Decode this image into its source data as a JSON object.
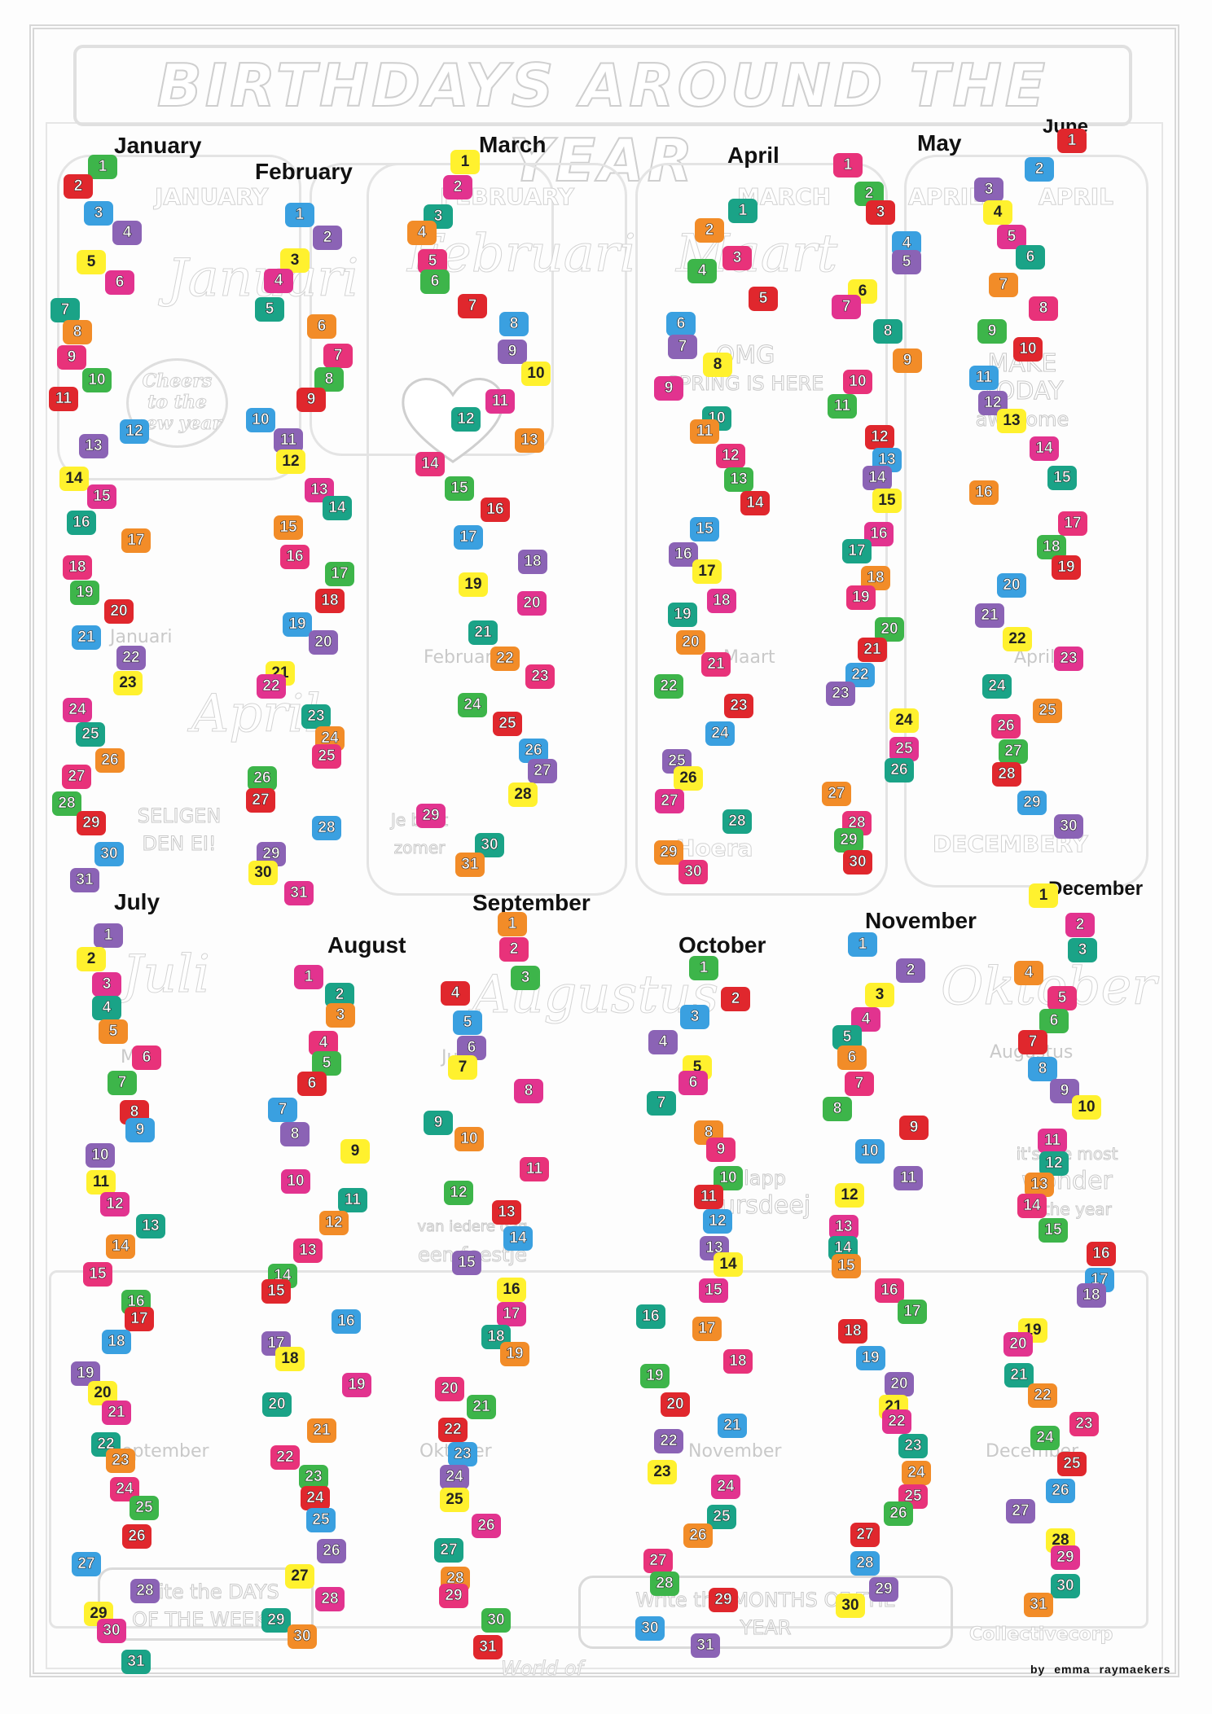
{
  "title": "BIRTHDAYS AROUND THE YEAR",
  "credit": "by  emma raymaekers",
  "months": [
    "January",
    "February",
    "March",
    "April",
    "May",
    "June",
    "July",
    "August",
    "September",
    "October",
    "November",
    "December"
  ],
  "ghost_months_top": [
    "JANUARY",
    "FEBRUARY",
    "MARCH",
    "APRIL",
    "APRIL"
  ],
  "ghost_labels": [
    "Januari",
    "Februari",
    "Maart",
    "April",
    "Mei",
    "Juni",
    "Augustus",
    "September",
    "Oktober",
    "November",
    "December"
  ],
  "scripts": [
    "Januari",
    "Februari",
    "Maart",
    "April",
    "Juli",
    "Augustus",
    "Oktober"
  ],
  "stickers": {
    "cheers": [
      "Cheers",
      "to the",
      "new year"
    ],
    "spring": [
      "OMG",
      "SPRING IS HERE"
    ],
    "make": [
      "MAKE",
      "TODAY",
      "awesome"
    ],
    "write_days": [
      "Write the DAYS",
      "OF THE WEEKS"
    ],
    "write_months": [
      "Write the MONTHS OF THE",
      "YEAR"
    ],
    "hoera": "Hoera",
    "wonder": [
      "it's the most",
      "wonder",
      "of the year"
    ],
    "bursdeej": [
      "Hlapp",
      "bursdeej"
    ],
    "feestje": [
      "van iedere dag",
      "een feestje"
    ],
    "jeent": [
      "Je bent",
      "zomer"
    ],
    "gelegen": [
      "SELIGEN",
      "DEN EI!"
    ],
    "decembery": "DECEMBERY",
    "collective": "Collectivecorp",
    "world": "World of"
  },
  "palette": {
    "pink": "#e8327a",
    "red": "#e0272d",
    "orange": "#f28c28",
    "yellow": "#fff12e",
    "green": "#3db54a",
    "teal": "#1aa387",
    "blue": "#3aa0e0",
    "purple": "#8b63b5",
    "magenta": "#e2338f"
  }
}
